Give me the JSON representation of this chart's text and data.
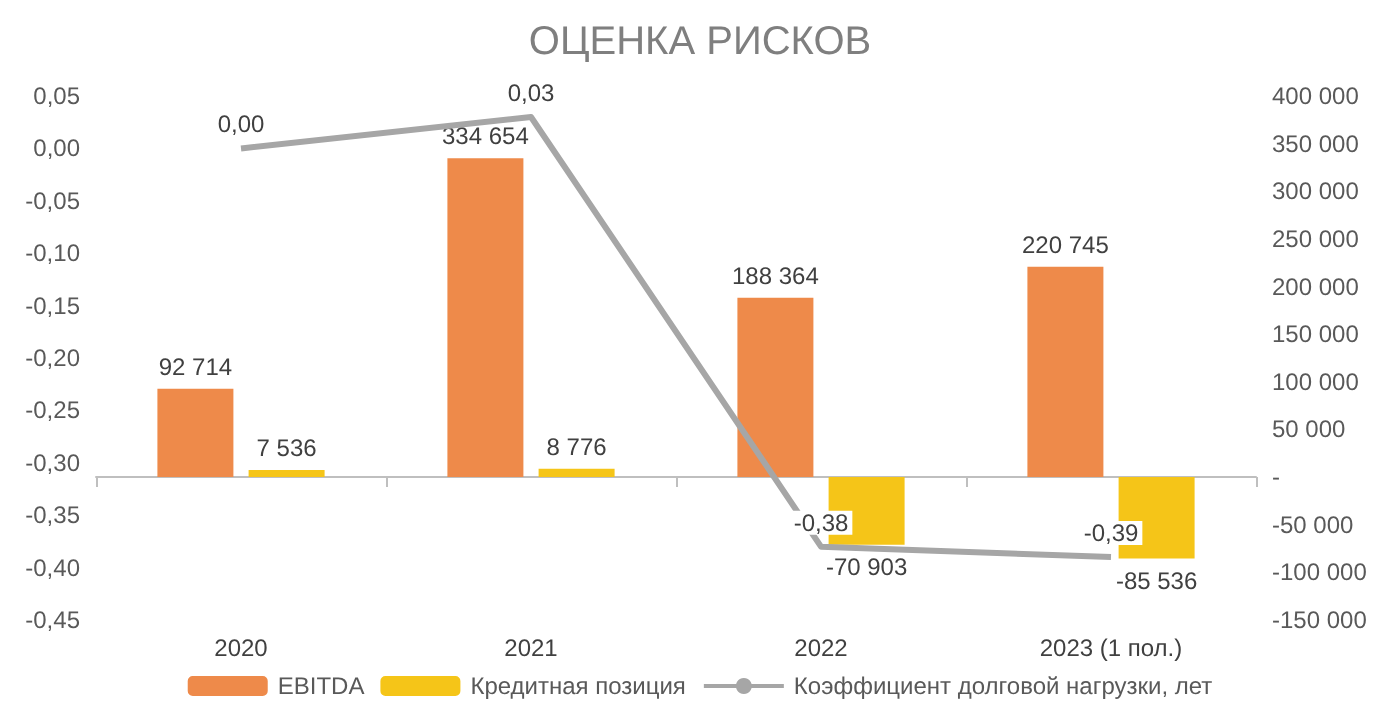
{
  "chart_data": {
    "type": "bar",
    "title": "ОЦЕНКА РИСКОВ",
    "categories": [
      "2020",
      "2021",
      "2022",
      "2023 (1 пол.)"
    ],
    "series": [
      {
        "name": "EBITDA",
        "axis": "y2",
        "color": "#ee8a4a",
        "values": [
          92714,
          334654,
          188364,
          220745
        ],
        "value_labels": [
          "92 714",
          "334 654",
          "188 364",
          "220 745"
        ]
      },
      {
        "name": "Кредитная позиция",
        "axis": "y2",
        "color": "#f5c518",
        "values": [
          7536,
          8776,
          -70903,
          -85536
        ],
        "value_labels": [
          "7 536",
          "8 776",
          "-70 903",
          "-85 536"
        ]
      },
      {
        "name": "Коэффициент долговой нагрузки, лет",
        "type": "line",
        "axis": "y",
        "color": "#a6a6a6",
        "values": [
          0,
          0.03,
          -0.38,
          -0.39
        ],
        "value_labels": [
          "0,00",
          "0,03",
          "-0,38",
          "-0,39"
        ]
      }
    ],
    "ylim": [
      -0.45,
      0.05
    ],
    "yticks": [
      {
        "value": -0.45,
        "label": "-0,45"
      },
      {
        "value": -0.4,
        "label": "-0,40"
      },
      {
        "value": -0.35,
        "label": "-0,35"
      },
      {
        "value": -0.3,
        "label": "-0,30"
      },
      {
        "value": -0.25,
        "label": "-0,25"
      },
      {
        "value": -0.2,
        "label": "-0,20"
      },
      {
        "value": -0.15,
        "label": "-0,15"
      },
      {
        "value": -0.1,
        "label": "-0,10"
      },
      {
        "value": -0.05,
        "label": "-0,05"
      },
      {
        "value": 0,
        "label": "0,00"
      },
      {
        "value": 0.05,
        "label": "0,05"
      }
    ],
    "y2lim": [
      -150000,
      400000
    ],
    "y2ticks": [
      {
        "value": -150000,
        "label": "-150 000"
      },
      {
        "value": -100000,
        "label": "-100 000"
      },
      {
        "value": -50000,
        "label": "-50 000"
      },
      {
        "value": 0,
        "label": "-"
      },
      {
        "value": 50000,
        "label": "50 000"
      },
      {
        "value": 100000,
        "label": "100 000"
      },
      {
        "value": 150000,
        "label": "150 000"
      },
      {
        "value": 200000,
        "label": "200 000"
      },
      {
        "value": 250000,
        "label": "250 000"
      },
      {
        "value": 300000,
        "label": "300 000"
      },
      {
        "value": 350000,
        "label": "350 000"
      },
      {
        "value": 400000,
        "label": "400 000"
      }
    ],
    "legend": "bottom",
    "marker": "none",
    "line_style": "solid"
  }
}
